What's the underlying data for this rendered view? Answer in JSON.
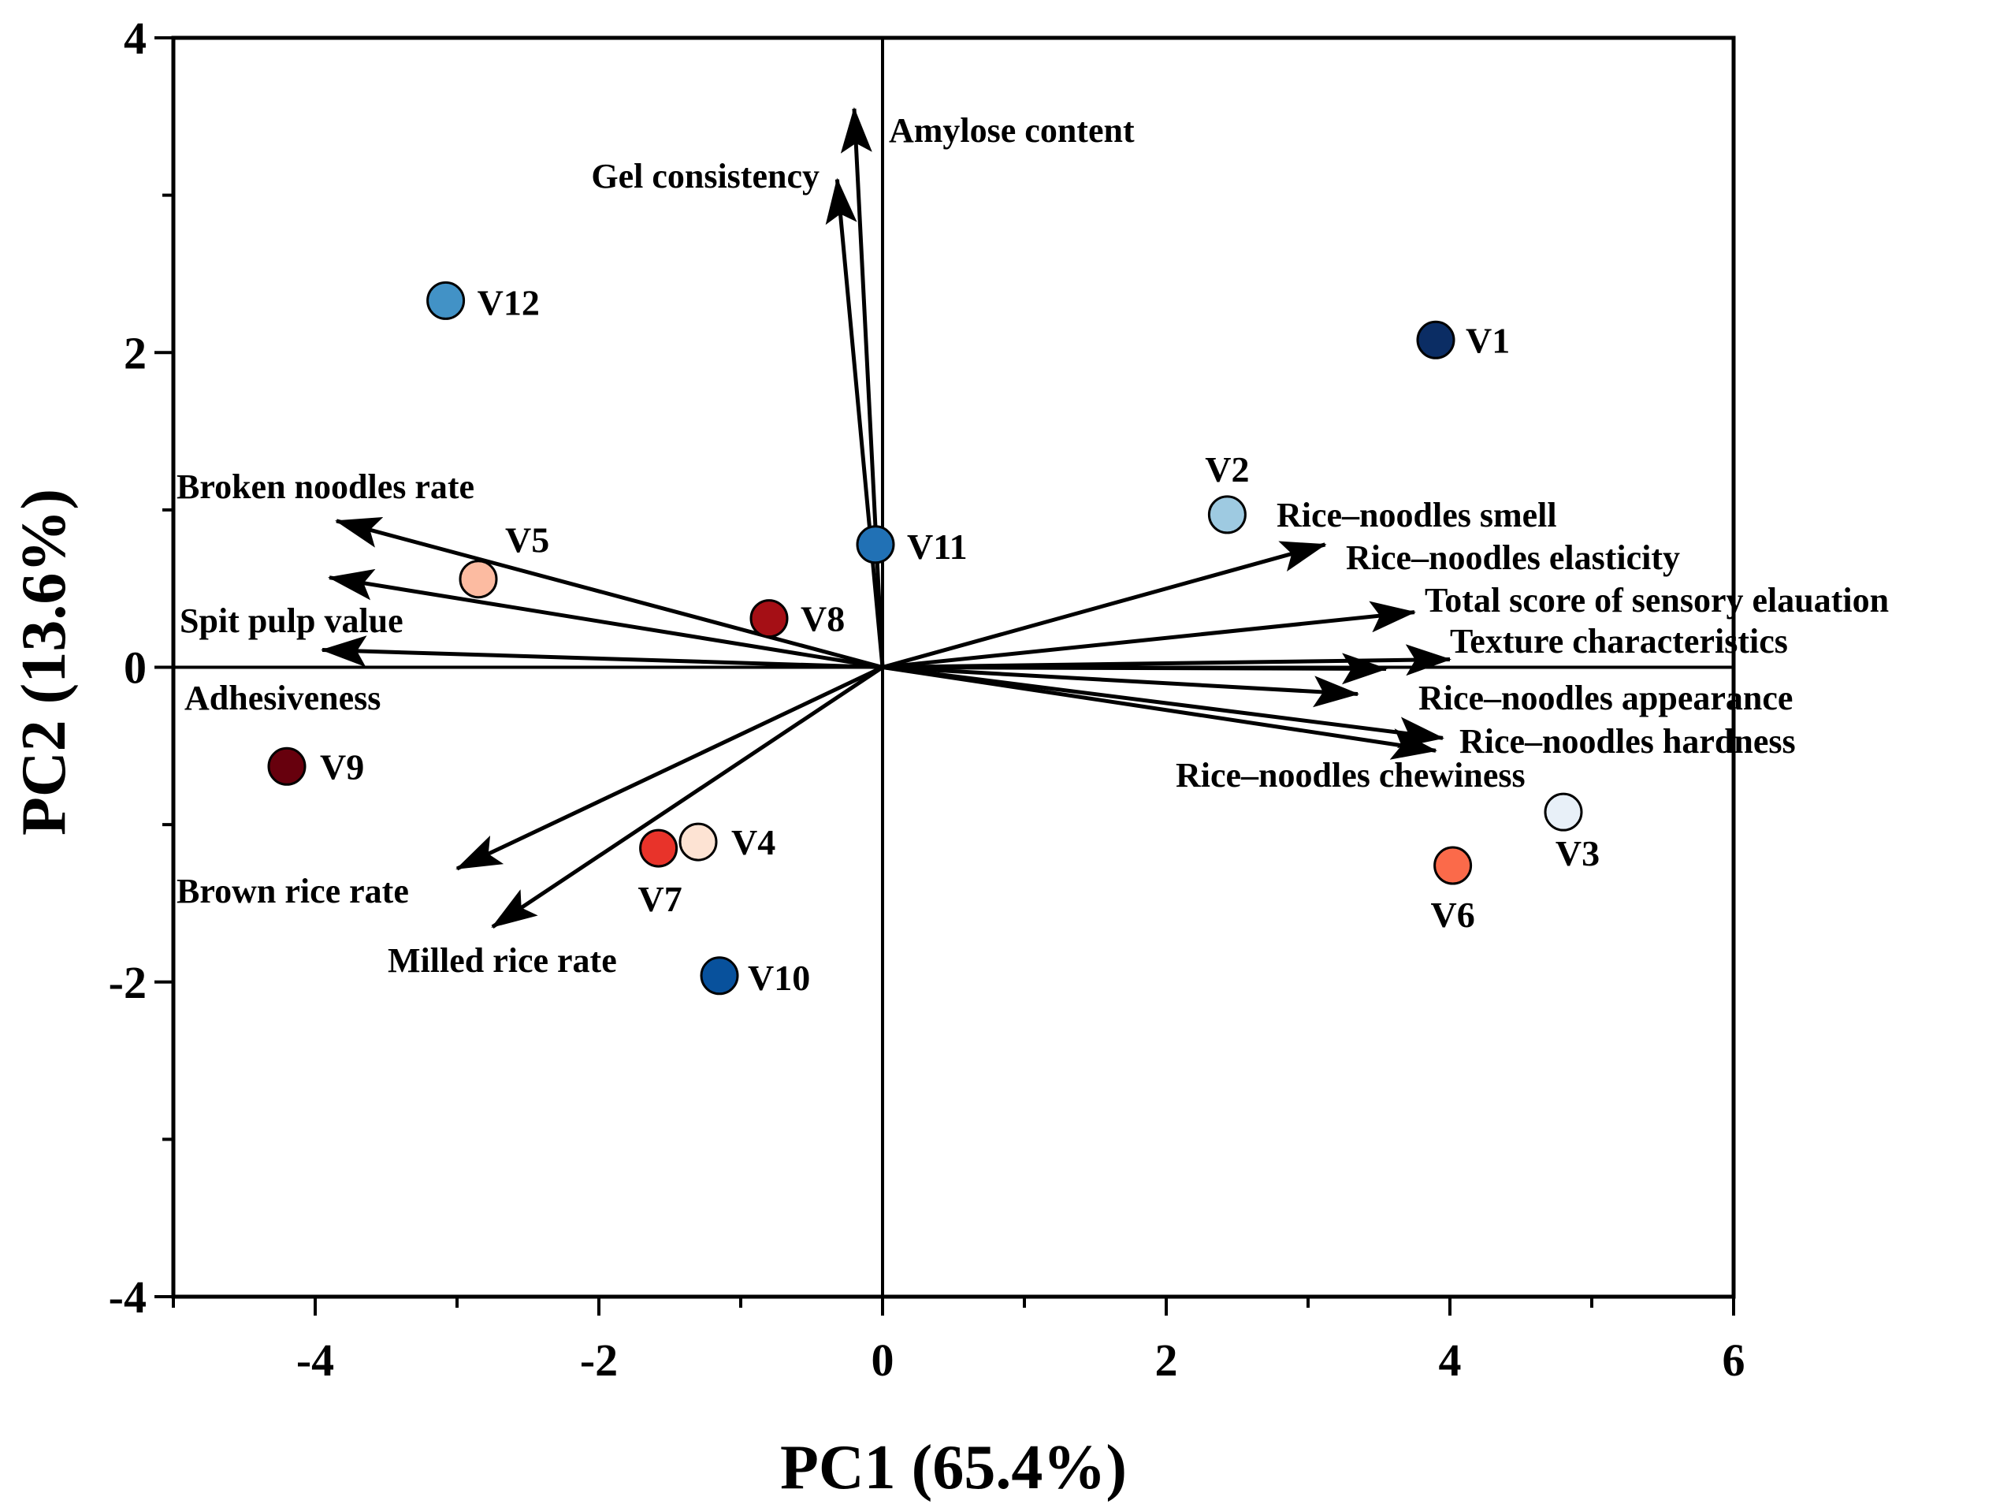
{
  "chart_data": {
    "type": "scatter",
    "subtype": "pca-biplot",
    "xlabel": "PC1 (65.4%)",
    "ylabel": "PC2 (13.6%)",
    "xlim": [
      -5,
      6
    ],
    "ylim": [
      -4,
      4
    ],
    "xticks": [
      -4,
      -2,
      0,
      2,
      4,
      6
    ],
    "yticks": [
      -4,
      -2,
      0,
      2,
      4
    ],
    "points": [
      {
        "name": "V1",
        "x": 3.9,
        "y": 2.08,
        "color": "#0b2d64"
      },
      {
        "name": "V2",
        "x": 2.43,
        "y": 0.97,
        "color": "#9ecae1"
      },
      {
        "name": "V3",
        "x": 4.8,
        "y": -0.92,
        "color": "#e8f0f8"
      },
      {
        "name": "V4",
        "x": -1.3,
        "y": -1.11,
        "color": "#fde3d3"
      },
      {
        "name": "V5",
        "x": -2.85,
        "y": 0.56,
        "color": "#fcbba1"
      },
      {
        "name": "V6",
        "x": 4.02,
        "y": -1.26,
        "color": "#fb6a4a"
      },
      {
        "name": "V7",
        "x": -1.58,
        "y": -1.15,
        "color": "#e8332a"
      },
      {
        "name": "V8",
        "x": -0.8,
        "y": 0.31,
        "color": "#a50f15"
      },
      {
        "name": "V9",
        "x": -4.2,
        "y": -0.63,
        "color": "#67000d"
      },
      {
        "name": "V10",
        "x": -1.15,
        "y": -1.96,
        "color": "#08519c"
      },
      {
        "name": "V11",
        "x": -0.05,
        "y": 0.78,
        "color": "#2171b5"
      },
      {
        "name": "V12",
        "x": -3.08,
        "y": 2.33,
        "color": "#4292c6"
      }
    ],
    "loadings": [
      {
        "name": "Amylose content",
        "x": -0.2,
        "y": 3.55
      },
      {
        "name": "Gel consistency",
        "x": -0.32,
        "y": 3.1
      },
      {
        "name": "Broken noodles rate",
        "x": -3.85,
        "y": 0.93
      },
      {
        "name": "Spit pulp value",
        "x": -3.9,
        "y": 0.57
      },
      {
        "name": "Adhesiveness",
        "x": -3.95,
        "y": 0.11
      },
      {
        "name": "Brown rice rate",
        "x": -3.0,
        "y": -1.28
      },
      {
        "name": "Milled rice rate",
        "x": -2.75,
        "y": -1.65
      },
      {
        "name": "Rice–noodles smell",
        "x": 3.12,
        "y": 0.78
      },
      {
        "name": "Rice–noodles elasticity",
        "x": 3.75,
        "y": 0.35
      },
      {
        "name": "Total score of sensory elauation",
        "x": 4.0,
        "y": 0.05
      },
      {
        "name": "Texture characteristics",
        "x": 3.55,
        "y": -0.01
      },
      {
        "name": "Rice–noodles appearance",
        "x": 3.35,
        "y": -0.17
      },
      {
        "name": "Rice–noodles hardness",
        "x": 3.95,
        "y": -0.45
      },
      {
        "name": "Rice–noodles chewiness",
        "x": 3.9,
        "y": -0.53
      }
    ]
  }
}
